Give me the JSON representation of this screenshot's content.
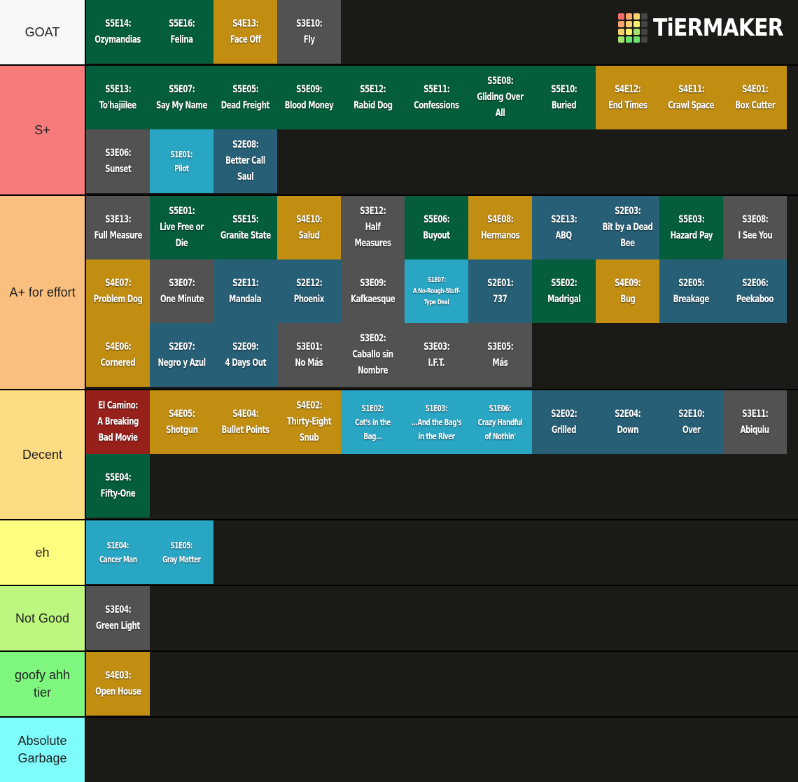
{
  "logo": {
    "text": "TiERMAKER",
    "grid_colors": [
      "#f86c6c",
      "#f8a66c",
      "#f8d06c",
      "#444444",
      "#f8a66c",
      "#f8d06c",
      "#f8f06c",
      "#444444",
      "#f8d06c",
      "#f8f06c",
      "#a6e36c",
      "#444444",
      "#a6e36c",
      "#6ce36c",
      "#6ce36c",
      "#444444"
    ]
  },
  "palette": {
    "S5": "#045e3c",
    "S4": "#c28e12",
    "S3": "#525252",
    "S2": "#275f77",
    "S1": "#2aa6c5",
    "EC": "#97201b"
  },
  "tiers": [
    {
      "label": "GOAT",
      "color": "#f7f7f7",
      "height": 92,
      "items": [
        {
          "code": "S5E14:",
          "title": "Ozymandias",
          "s": "S5"
        },
        {
          "code": "S5E16:",
          "title": "Felina",
          "s": "S5"
        },
        {
          "code": "S4E13:",
          "title": "Face Off",
          "s": "S4"
        },
        {
          "code": "S3E10:",
          "title": "Fly",
          "s": "S3"
        }
      ]
    },
    {
      "label": "S+",
      "color": "#f77b7b",
      "height": 184,
      "items": [
        {
          "code": "S5E13:",
          "title": "To'hajiilee",
          "s": "S5"
        },
        {
          "code": "S5E07:",
          "title": "Say My Name",
          "s": "S5"
        },
        {
          "code": "S5E05:",
          "title": "Dead Freight",
          "s": "S5"
        },
        {
          "code": "S5E09:",
          "title": "Blood Money",
          "s": "S5"
        },
        {
          "code": "S5E12:",
          "title": "Rabid Dog",
          "s": "S5"
        },
        {
          "code": "S5E11:",
          "title": "Confessions",
          "s": "S5"
        },
        {
          "code": "S5E08:",
          "title": "Gliding Over All",
          "s": "S5"
        },
        {
          "code": "S5E10:",
          "title": "Buried",
          "s": "S5"
        },
        {
          "code": "S4E12:",
          "title": "End Times",
          "s": "S4"
        },
        {
          "code": "S4E11:",
          "title": "Crawl Space",
          "s": "S4"
        },
        {
          "code": "S4E01:",
          "title": "Box Cutter",
          "s": "S4"
        },
        {
          "code": "S3E06:",
          "title": "Sunset",
          "s": "S3"
        },
        {
          "code": "S1E01:",
          "title": "Pilot",
          "s": "S1",
          "size": "small"
        },
        {
          "code": "S2E08:",
          "title": "Better Call Saul",
          "s": "S2"
        }
      ]
    },
    {
      "label": "A+ for effort",
      "color": "#f9bf7e",
      "height": 276,
      "items": [
        {
          "code": "S3E13:",
          "title": "Full Measure",
          "s": "S3"
        },
        {
          "code": "S5E01:",
          "title": "Live Free or Die",
          "s": "S5"
        },
        {
          "code": "S5E15:",
          "title": "Granite State",
          "s": "S5"
        },
        {
          "code": "S4E10:",
          "title": "Salud",
          "s": "S4"
        },
        {
          "code": "S3E12:",
          "title": "Half Measures",
          "s": "S3"
        },
        {
          "code": "S5E06:",
          "title": "Buyout",
          "s": "S5"
        },
        {
          "code": "S4E08:",
          "title": "Hermanos",
          "s": "S4"
        },
        {
          "code": "S2E13:",
          "title": "ABQ",
          "s": "S2"
        },
        {
          "code": "S2E03:",
          "title": "Bit by a Dead Bee",
          "s": "S2"
        },
        {
          "code": "S5E03:",
          "title": "Hazard Pay",
          "s": "S5"
        },
        {
          "code": "S3E08:",
          "title": "I See You",
          "s": "S3"
        },
        {
          "code": "S4E07:",
          "title": "Problem Dog",
          "s": "S4"
        },
        {
          "code": "S3E07:",
          "title": "One Minute",
          "s": "S3"
        },
        {
          "code": "S2E11:",
          "title": "Mandala",
          "s": "S2"
        },
        {
          "code": "S2E12:",
          "title": "Phoenix",
          "s": "S2"
        },
        {
          "code": "S3E09:",
          "title": "Kafkaesque",
          "s": "S3"
        },
        {
          "code": "S1E07:",
          "title": "A No-Rough-Stuff-Type Deal",
          "s": "S1",
          "size": "tiny"
        },
        {
          "code": "S2E01:",
          "title": "737",
          "s": "S2"
        },
        {
          "code": "S5E02:",
          "title": "Madrigal",
          "s": "S5"
        },
        {
          "code": "S4E09:",
          "title": "Bug",
          "s": "S4"
        },
        {
          "code": "S2E05:",
          "title": "Breakage",
          "s": "S2"
        },
        {
          "code": "S2E06:",
          "title": "Peekaboo",
          "s": "S2"
        },
        {
          "code": "S4E06:",
          "title": "Cornered",
          "s": "S4"
        },
        {
          "code": "S2E07:",
          "title": "Negro y Azul",
          "s": "S2"
        },
        {
          "code": "S2E09:",
          "title": "4 Days Out",
          "s": "S2"
        },
        {
          "code": "S3E01:",
          "title": "No Más",
          "s": "S3"
        },
        {
          "code": "S3E02:",
          "title": "Caballo sin Nombre",
          "s": "S3"
        },
        {
          "code": "S3E03:",
          "title": "I.F.T.",
          "s": "S3"
        },
        {
          "code": "S3E05:",
          "title": "Más",
          "s": "S3"
        }
      ]
    },
    {
      "label": "Decent",
      "color": "#fddc83",
      "height": 184,
      "items": [
        {
          "code": "El Camino:",
          "title": "A Breaking Bad Movie",
          "s": "EC"
        },
        {
          "code": "S4E05:",
          "title": "Shotgun",
          "s": "S4"
        },
        {
          "code": "S4E04:",
          "title": "Bullet Points",
          "s": "S4"
        },
        {
          "code": "S4E02:",
          "title": "Thirty-Eight Snub",
          "s": "S4"
        },
        {
          "code": "S1E02:",
          "title": "Cat's in the Bag...",
          "s": "S1",
          "size": "small"
        },
        {
          "code": "S1E03:",
          "title": "...And the Bag's in the River",
          "s": "S1",
          "size": "small"
        },
        {
          "code": "S1E06:",
          "title": "Crazy Handful of Nothin'",
          "s": "S1",
          "size": "small"
        },
        {
          "code": "S2E02:",
          "title": "Grilled",
          "s": "S2"
        },
        {
          "code": "S2E04:",
          "title": "Down",
          "s": "S2"
        },
        {
          "code": "S2E10:",
          "title": "Over",
          "s": "S2"
        },
        {
          "code": "S3E11:",
          "title": "Abiquiu",
          "s": "S3"
        },
        {
          "code": "S5E04:",
          "title": "Fifty-One",
          "s": "S5"
        }
      ]
    },
    {
      "label": "eh",
      "color": "#fdfd7f",
      "height": 92,
      "items": [
        {
          "code": "S1E04:",
          "title": "Cancer Man",
          "s": "S1",
          "size": "small"
        },
        {
          "code": "S1E05:",
          "title": "Gray Matter",
          "s": "S1",
          "size": "small"
        }
      ]
    },
    {
      "label": "Not Good",
      "color": "#bef77f",
      "height": 92,
      "items": [
        {
          "code": "S3E04:",
          "title": "Green Light",
          "s": "S3"
        }
      ]
    },
    {
      "label": "goofy ahh tier",
      "color": "#7ff77f",
      "height": 92,
      "items": [
        {
          "code": "S4E03:",
          "title": "Open House",
          "s": "S4"
        }
      ]
    },
    {
      "label": "Absolute Garbage",
      "color": "#7ffdfd",
      "height": 92,
      "items": []
    }
  ]
}
